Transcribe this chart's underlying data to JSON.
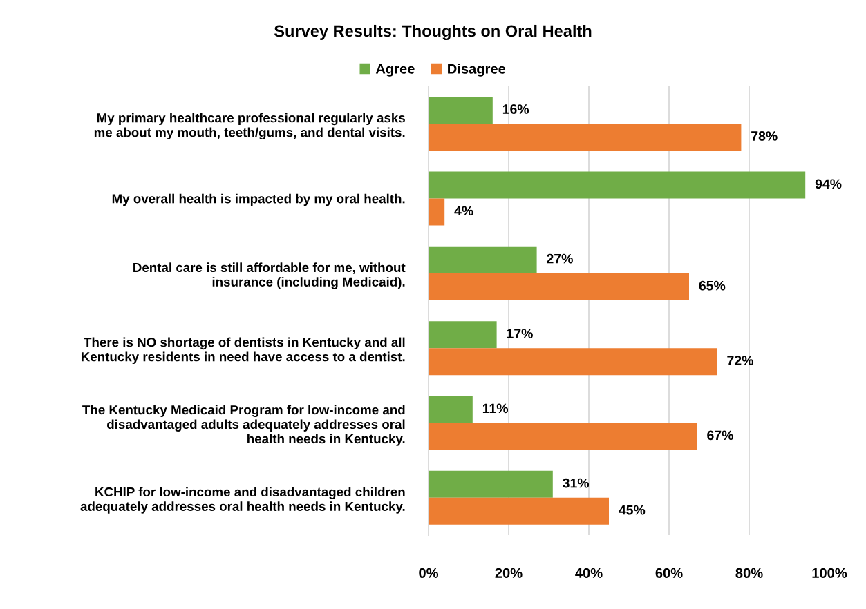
{
  "chart_data": {
    "type": "bar",
    "orientation": "horizontal",
    "title": "Survey Results: Thoughts on Oral Health",
    "categories": [
      "My primary healthcare professional regularly asks\nme about my mouth, teeth/gums, and dental visits.",
      "My overall health is impacted by my oral health.",
      "Dental care is still affordable for me, without\ninsurance (including Medicaid).",
      "There is NO shortage of dentists in Kentucky and all\nKentucky residents in need have access to a dentist.",
      "The Kentucky Medicaid Program for low-income and\ndisadvantaged adults adequately addresses oral\nhealth needs in Kentucky.",
      "KCHIP for low-income and disadvantaged children\nadequately addresses oral health needs in Kentucky."
    ],
    "series": [
      {
        "name": "Agree",
        "color": "#70ad47",
        "values": [
          16,
          94,
          27,
          17,
          11,
          31
        ],
        "value_labels": [
          "16%",
          "94%",
          "27%",
          "17%",
          "11%",
          "31%"
        ]
      },
      {
        "name": "Disagree",
        "color": "#ed7d31",
        "values": [
          78,
          4,
          65,
          72,
          67,
          45
        ],
        "value_labels": [
          "78%",
          "4%",
          "65%",
          "72%",
          "67%",
          "45%"
        ]
      }
    ],
    "xlim": [
      0,
      100
    ],
    "xticks": [
      {
        "value": 0,
        "label": "0%"
      },
      {
        "value": 20,
        "label": "20%"
      },
      {
        "value": 40,
        "label": "40%"
      },
      {
        "value": 60,
        "label": "60%"
      },
      {
        "value": 80,
        "label": "80%"
      },
      {
        "value": 100,
        "label": "100%"
      }
    ],
    "grid": "x",
    "legend": "top"
  }
}
